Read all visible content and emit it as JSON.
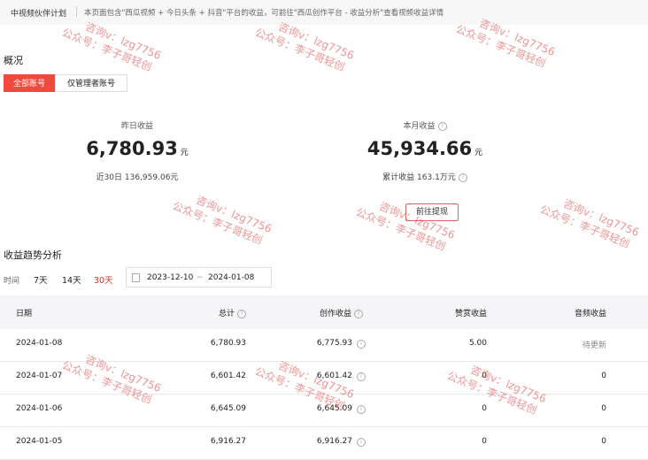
{
  "header": {
    "title": "中视频伙伴计划",
    "notice": "本页面包含\"西瓜视频 + 今日头条 + 抖音\"平台的收益，可前往\"西瓜创作平台 - 收益分析\"查看视频收益详情"
  },
  "overview": {
    "title": "概况",
    "tabs": [
      "全部账号",
      "仅管理者账号"
    ],
    "yesterday": {
      "label": "昨日收益",
      "value": "6,780.93",
      "unit": "元",
      "sub": "近30日 136,959.06元"
    },
    "month": {
      "label": "本月收益",
      "value": "45,934.66",
      "unit": "元",
      "sub": "累计收益 163.1万元",
      "button": "前往提现"
    }
  },
  "trend": {
    "title": "收益趋势分析",
    "range_label": "时间",
    "ranges": [
      "7天",
      "14天",
      "30天"
    ],
    "start": "2023-12-10",
    "separator": "~",
    "end": "2024-01-08"
  },
  "table": {
    "columns": [
      "日期",
      "总计",
      "创作收益",
      "赞赏收益",
      "音频收益"
    ],
    "rows": [
      [
        "2024-01-08",
        "6,780.93",
        "6,775.93",
        "5.00",
        "待更新"
      ],
      [
        "2024-01-07",
        "6,601.42",
        "6,601.42",
        "0",
        "0"
      ],
      [
        "2024-01-06",
        "6,645.09",
        "6,645.09",
        "0",
        "0"
      ],
      [
        "2024-01-05",
        "6,916.27",
        "6,916.27",
        "0",
        "0"
      ]
    ]
  },
  "watermark": [
    "咨询v：lzg7756",
    "公众号：李子哥轻创"
  ]
}
